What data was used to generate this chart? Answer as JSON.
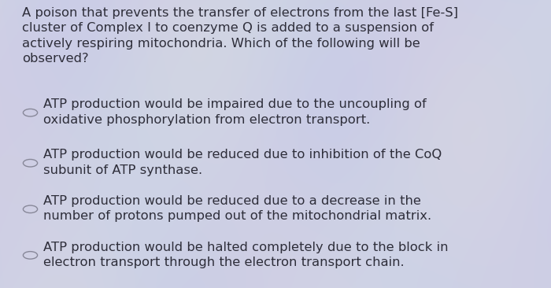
{
  "background_color": "#cdd0dc",
  "text_color": "#2e2e3a",
  "question": "A poison that prevents the transfer of electrons from the last [Fe-S]\ncluster of Complex I to coenzyme Q is added to a suspension of\nactively respiring mitochondria. Which of the following will be\nobserved?",
  "options": [
    "ATP production would be impaired due to the uncoupling of\noxidative phosphorylation from electron transport.",
    "ATP production would be reduced due to inhibition of the CoQ\nsubunit of ATP synthase.",
    "ATP production would be reduced due to a decrease in the\nnumber of protons pumped out of the mitochondrial matrix.",
    "ATP production would be halted completely due to the block in\nelectron transport through the electron transport chain."
  ],
  "question_fontsize": 11.8,
  "option_fontsize": 11.8,
  "circle_color": "#888899",
  "figsize": [
    7.0,
    3.66
  ],
  "dpi": 100
}
